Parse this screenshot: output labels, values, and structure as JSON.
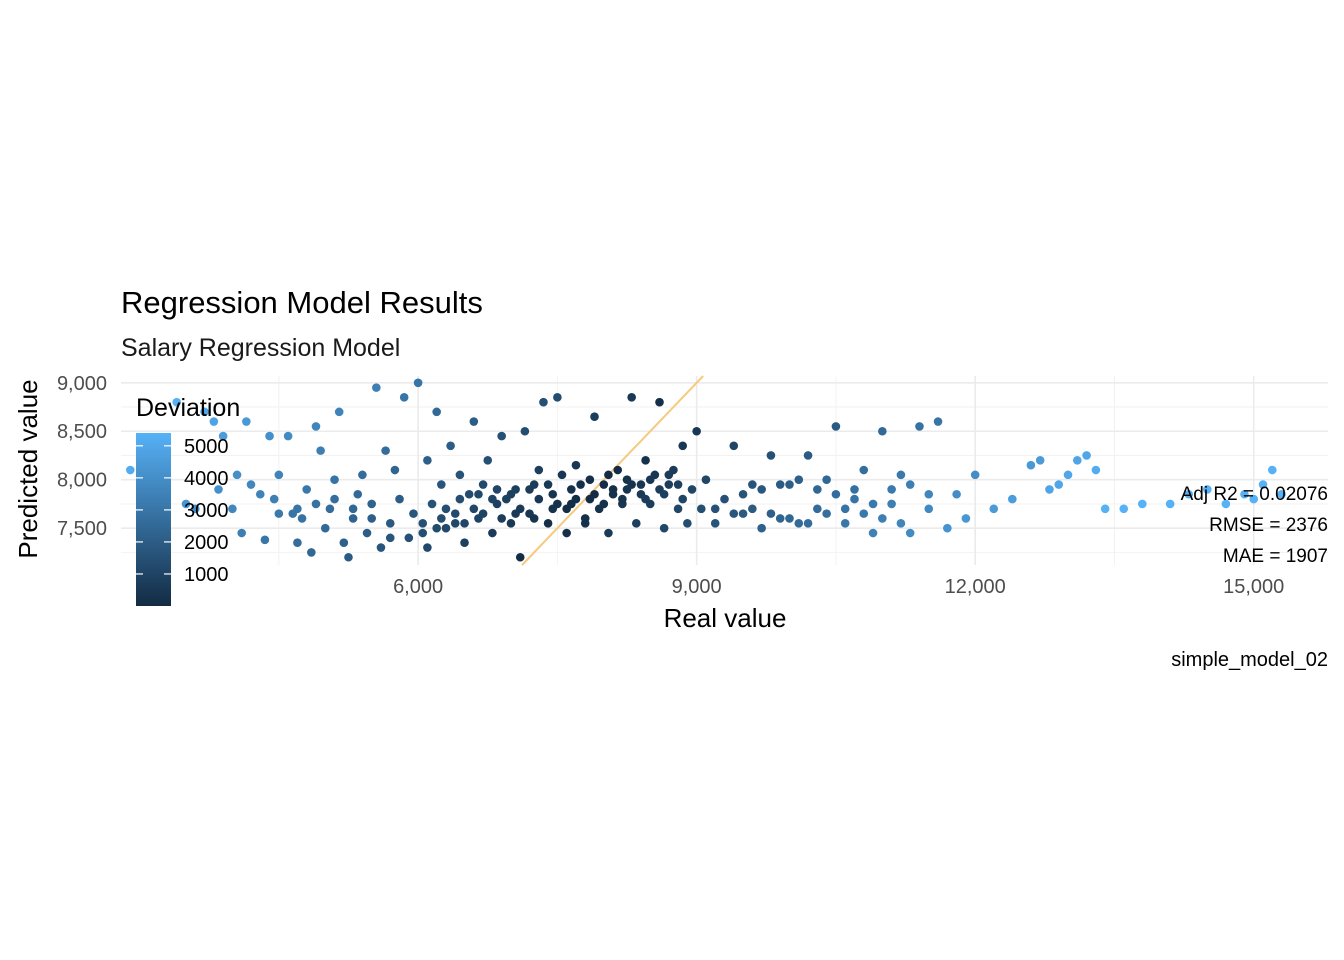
{
  "chart_data": {
    "type": "scatter",
    "title": "Regression Model Results",
    "subtitle": "Salary Regression Model",
    "xlabel": "Real value",
    "ylabel": "Predicted value",
    "caption": "simple_model_02",
    "xlim": [
      2800,
      15800
    ],
    "ylim": [
      7120,
      9070
    ],
    "x_ticks": [
      6000,
      9000,
      12000,
      15000
    ],
    "x_tick_labels": [
      "6,000",
      "9,000",
      "12,000",
      "15,000"
    ],
    "y_ticks": [
      7500,
      8000,
      8500,
      9000
    ],
    "y_tick_labels": [
      "7,500",
      "8,000",
      "8,500",
      "9,000"
    ],
    "grid": true,
    "reference_line": {
      "slope": 1,
      "intercept": 0,
      "color": "#f7c97e"
    },
    "color_scale": {
      "name": "Deviation",
      "low_color": "#132b43",
      "high_color": "#56b1f7",
      "range": [
        0,
        5400
      ],
      "breaks": [
        1000,
        2000,
        3000,
        4000,
        5000
      ],
      "break_labels": [
        "1000",
        "2000",
        "3000",
        "4000",
        "5000"
      ],
      "legend_position": "left-inside"
    },
    "annotations": [
      "Adj R2 =  0.02076",
      "RMSE = 2376",
      "MAE = 1907"
    ],
    "metrics": {
      "adj_r2": 0.02076,
      "rmse": 2376,
      "mae": 1907
    },
    "points": [
      [
        2900,
        8100
      ],
      [
        3100,
        8200
      ],
      [
        3400,
        8800
      ],
      [
        3500,
        7750
      ],
      [
        3600,
        7700
      ],
      [
        3700,
        8700
      ],
      [
        3800,
        8600
      ],
      [
        3850,
        7900
      ],
      [
        3900,
        8450
      ],
      [
        4000,
        7700
      ],
      [
        4050,
        8050
      ],
      [
        4100,
        7450
      ],
      [
        4150,
        8600
      ],
      [
        4200,
        7950
      ],
      [
        4300,
        7850
      ],
      [
        4350,
        7380
      ],
      [
        4400,
        8450
      ],
      [
        4450,
        7800
      ],
      [
        4500,
        8050
      ],
      [
        4600,
        8450
      ],
      [
        4650,
        7650
      ],
      [
        4700,
        7350
      ],
      [
        4750,
        7600
      ],
      [
        4800,
        7900
      ],
      [
        4850,
        7250
      ],
      [
        4900,
        8550
      ],
      [
        4950,
        8300
      ],
      [
        5000,
        7500
      ],
      [
        5050,
        7700
      ],
      [
        5100,
        8000
      ],
      [
        5150,
        8700
      ],
      [
        5200,
        7350
      ],
      [
        5250,
        7200
      ],
      [
        5300,
        7600
      ],
      [
        5350,
        7850
      ],
      [
        5400,
        8050
      ],
      [
        5450,
        7450
      ],
      [
        5500,
        7750
      ],
      [
        5550,
        8950
      ],
      [
        5600,
        7300
      ],
      [
        5650,
        8300
      ],
      [
        5700,
        7550
      ],
      [
        5750,
        8100
      ],
      [
        5800,
        7800
      ],
      [
        5850,
        8850
      ],
      [
        5900,
        7400
      ],
      [
        5950,
        7650
      ],
      [
        6000,
        9000
      ],
      [
        6050,
        7550
      ],
      [
        6100,
        8200
      ],
      [
        6150,
        7750
      ],
      [
        6200,
        8700
      ],
      [
        6250,
        7950
      ],
      [
        6300,
        7500
      ],
      [
        6350,
        8350
      ],
      [
        6400,
        7650
      ],
      [
        6450,
        8050
      ],
      [
        6500,
        7350
      ],
      [
        6550,
        7850
      ],
      [
        6600,
        8600
      ],
      [
        6650,
        7600
      ],
      [
        6700,
        7950
      ],
      [
        6750,
        8200
      ],
      [
        6800,
        7450
      ],
      [
        6850,
        7750
      ],
      [
        6900,
        8450
      ],
      [
        6950,
        7800
      ],
      [
        7000,
        7550
      ],
      [
        7050,
        7900
      ],
      [
        7100,
        7200
      ],
      [
        7150,
        8500
      ],
      [
        7200,
        7650
      ],
      [
        7250,
        7950
      ],
      [
        7300,
        8100
      ],
      [
        7350,
        8800
      ],
      [
        7400,
        7550
      ],
      [
        7450,
        7850
      ],
      [
        7500,
        8850
      ],
      [
        7550,
        8050
      ],
      [
        7600,
        7450
      ],
      [
        7650,
        7750
      ],
      [
        7700,
        8150
      ],
      [
        7750,
        7950
      ],
      [
        7800,
        7550
      ],
      [
        7850,
        7800
      ],
      [
        7900,
        8650
      ],
      [
        7950,
        7700
      ],
      [
        8000,
        7950
      ],
      [
        8050,
        7450
      ],
      [
        8100,
        7850
      ],
      [
        8150,
        8100
      ],
      [
        8200,
        7750
      ],
      [
        8250,
        8000
      ],
      [
        8300,
        8850
      ],
      [
        8350,
        7550
      ],
      [
        8400,
        7950
      ],
      [
        8450,
        8200
      ],
      [
        8500,
        7750
      ],
      [
        8550,
        8050
      ],
      [
        8600,
        8800
      ],
      [
        8650,
        7500
      ],
      [
        8700,
        7950
      ],
      [
        8750,
        8100
      ],
      [
        8800,
        7700
      ],
      [
        8850,
        8350
      ],
      [
        8900,
        7550
      ],
      [
        8950,
        7900
      ],
      [
        9000,
        8500
      ],
      [
        9050,
        7700
      ],
      [
        9100,
        8000
      ],
      [
        9200,
        7550
      ],
      [
        9300,
        7800
      ],
      [
        9400,
        8350
      ],
      [
        9500,
        7650
      ],
      [
        9600,
        7950
      ],
      [
        9700,
        7500
      ],
      [
        9800,
        8250
      ],
      [
        9900,
        7600
      ],
      [
        10000,
        7950
      ],
      [
        10100,
        7550
      ],
      [
        10200,
        8250
      ],
      [
        10300,
        7700
      ],
      [
        10400,
        8000
      ],
      [
        10500,
        8550
      ],
      [
        10600,
        7550
      ],
      [
        10700,
        7900
      ],
      [
        10800,
        8100
      ],
      [
        10900,
        7450
      ],
      [
        11000,
        8500
      ],
      [
        11100,
        7750
      ],
      [
        11200,
        8050
      ],
      [
        11300,
        7450
      ],
      [
        11400,
        8550
      ],
      [
        11500,
        7700
      ],
      [
        11600,
        8600
      ],
      [
        11700,
        7500
      ],
      [
        11800,
        7850
      ],
      [
        11900,
        7600
      ],
      [
        12000,
        8050
      ],
      [
        12200,
        7700
      ],
      [
        12400,
        7800
      ],
      [
        12600,
        8150
      ],
      [
        12700,
        8200
      ],
      [
        12800,
        7900
      ],
      [
        12900,
        7950
      ],
      [
        13000,
        8050
      ],
      [
        13100,
        8200
      ],
      [
        13200,
        8250
      ],
      [
        13300,
        8100
      ],
      [
        13400,
        7700
      ],
      [
        13600,
        7700
      ],
      [
        13800,
        7750
      ],
      [
        14100,
        7750
      ],
      [
        14300,
        7850
      ],
      [
        14500,
        7900
      ],
      [
        14700,
        7750
      ],
      [
        14900,
        7850
      ],
      [
        15000,
        7800
      ],
      [
        15100,
        7950
      ],
      [
        15200,
        8100
      ],
      [
        15300,
        7850
      ],
      [
        5700,
        7400
      ],
      [
        6100,
        7300
      ],
      [
        6300,
        7700
      ],
      [
        6500,
        7550
      ],
      [
        6700,
        7650
      ],
      [
        6900,
        7600
      ],
      [
        7100,
        7700
      ],
      [
        7300,
        7800
      ],
      [
        7500,
        7750
      ],
      [
        7700,
        7800
      ],
      [
        7900,
        7850
      ],
      [
        8100,
        7900
      ],
      [
        8300,
        7950
      ],
      [
        8500,
        8000
      ],
      [
        8700,
        8050
      ],
      [
        6200,
        7500
      ],
      [
        6400,
        7550
      ],
      [
        6600,
        7700
      ],
      [
        6800,
        7800
      ],
      [
        7000,
        7850
      ],
      [
        7200,
        7900
      ],
      [
        7400,
        7950
      ],
      [
        7600,
        7700
      ],
      [
        7800,
        7600
      ],
      [
        8000,
        7750
      ],
      [
        8200,
        7800
      ],
      [
        8400,
        7850
      ],
      [
        8600,
        7900
      ],
      [
        8800,
        7950
      ],
      [
        6050,
        7450
      ],
      [
        6250,
        7600
      ],
      [
        6450,
        7800
      ],
      [
        6650,
        7850
      ],
      [
        6850,
        7900
      ],
      [
        7050,
        7650
      ],
      [
        7250,
        7600
      ],
      [
        7450,
        7700
      ],
      [
        7650,
        7900
      ],
      [
        7850,
        8000
      ],
      [
        8050,
        8050
      ],
      [
        8250,
        7900
      ],
      [
        8450,
        7800
      ],
      [
        8650,
        7850
      ],
      [
        8850,
        7800
      ],
      [
        5500,
        7600
      ],
      [
        5300,
        7700
      ],
      [
        5100,
        7800
      ],
      [
        4900,
        7750
      ],
      [
        4700,
        7700
      ],
      [
        4500,
        7650
      ],
      [
        9500,
        7850
      ],
      [
        9700,
        7900
      ],
      [
        9900,
        7950
      ],
      [
        10100,
        8000
      ],
      [
        10300,
        7900
      ],
      [
        10500,
        7850
      ],
      [
        10700,
        7800
      ],
      [
        10900,
        7750
      ],
      [
        11100,
        7900
      ],
      [
        11300,
        7950
      ],
      [
        11500,
        7850
      ],
      [
        9200,
        7700
      ],
      [
        9400,
        7650
      ],
      [
        9600,
        7700
      ],
      [
        9800,
        7650
      ],
      [
        10000,
        7600
      ],
      [
        10200,
        7550
      ],
      [
        10400,
        7650
      ],
      [
        10600,
        7700
      ],
      [
        10800,
        7650
      ],
      [
        11000,
        7600
      ],
      [
        11200,
        7550
      ]
    ]
  }
}
